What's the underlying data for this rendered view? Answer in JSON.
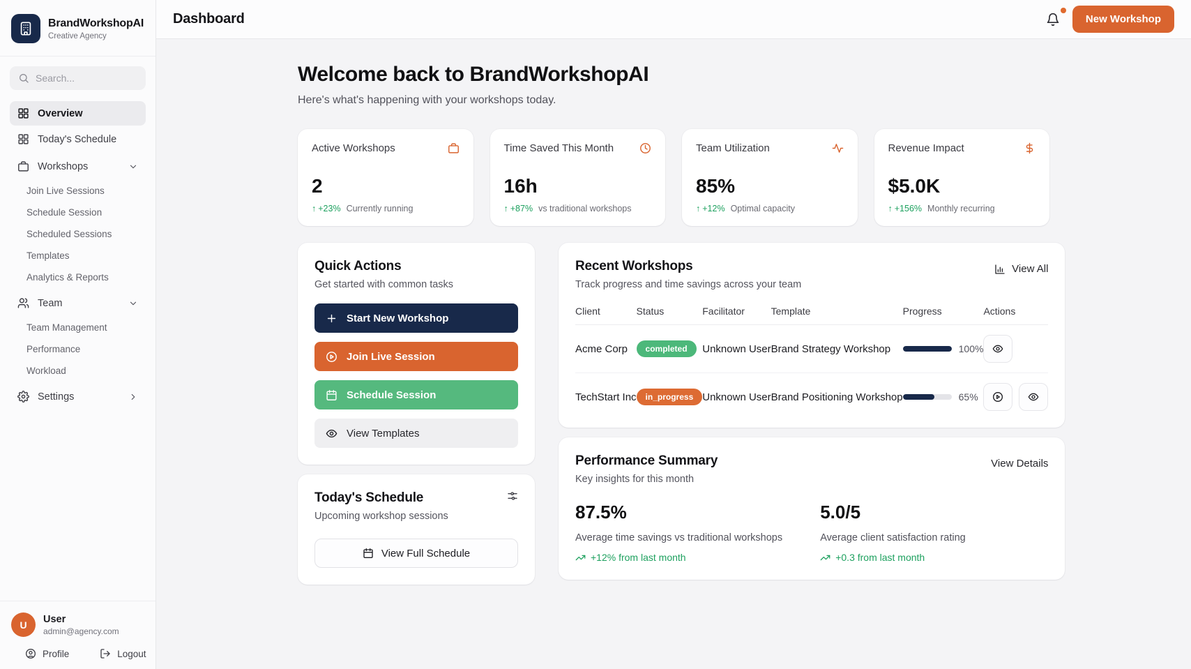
{
  "brand": {
    "name": "BrandWorkshopAI",
    "tagline": "Creative Agency"
  },
  "search": {
    "placeholder": "Search..."
  },
  "sidebar": {
    "items": [
      {
        "label": "Overview",
        "icon": "grid-icon",
        "active": true
      },
      {
        "label": "Today's Schedule",
        "icon": "grid-icon"
      },
      {
        "label": "Workshops",
        "icon": "briefcase-icon",
        "chevron": "down"
      },
      {
        "label": "Join Live Sessions"
      },
      {
        "label": "Schedule Session"
      },
      {
        "label": "Scheduled Sessions"
      },
      {
        "label": "Templates"
      },
      {
        "label": "Analytics & Reports"
      },
      {
        "label": "Team",
        "icon": "users-icon",
        "chevron": "down"
      },
      {
        "label": "Team Management"
      },
      {
        "label": "Performance"
      },
      {
        "label": "Workload"
      },
      {
        "label": "Settings",
        "icon": "gear-icon",
        "chevron": "right"
      }
    ],
    "user": {
      "initial": "U",
      "name": "User",
      "email": "admin@agency.com",
      "profile_label": "Profile",
      "logout_label": "Logout"
    }
  },
  "header": {
    "title": "Dashboard",
    "new_workshop_label": "New Workshop"
  },
  "welcome": {
    "title": "Welcome back to BrandWorkshopAI",
    "subtitle": "Here's what's happening with your workshops today."
  },
  "stats": [
    {
      "label": "Active Workshops",
      "icon": "briefcase-icon",
      "value": "2",
      "trend": "+23%",
      "note": "Currently running"
    },
    {
      "label": "Time Saved This Month",
      "icon": "clock-icon",
      "value": "16h",
      "trend": "+87%",
      "note": "vs traditional workshops"
    },
    {
      "label": "Team Utilization",
      "icon": "activity-icon",
      "value": "85%",
      "trend": "+12%",
      "note": "Optimal capacity"
    },
    {
      "label": "Revenue Impact",
      "icon": "dollar-icon",
      "value": "$5.0K",
      "trend": "+156%",
      "note": "Monthly recurring"
    }
  ],
  "quick_actions": {
    "title": "Quick Actions",
    "subtitle": "Get started with common tasks",
    "buttons": [
      {
        "label": "Start New Workshop",
        "icon": "plus-icon"
      },
      {
        "label": "Join Live Session",
        "icon": "play-circle-icon"
      },
      {
        "label": "Schedule Session",
        "icon": "calendar-icon"
      },
      {
        "label": "View Templates",
        "icon": "eye-icon"
      }
    ]
  },
  "recent_workshops": {
    "title": "Recent Workshops",
    "subtitle": "Track progress and time savings across your team",
    "view_all_label": "View All",
    "columns": [
      "Client",
      "Status",
      "Facilitator",
      "Template",
      "Progress",
      "Actions"
    ],
    "rows": [
      {
        "client": "Acme Corp",
        "status": "completed",
        "facilitator": "Unknown User",
        "template": "Brand Strategy Workshop",
        "progress": 100,
        "progress_label": "100%"
      },
      {
        "client": "TechStart Inc",
        "status": "in_progress",
        "facilitator": "Unknown User",
        "template": "Brand Positioning Workshop",
        "progress": 65,
        "progress_label": "65%"
      }
    ]
  },
  "todays_schedule": {
    "title": "Today's Schedule",
    "subtitle": "Upcoming workshop sessions",
    "button_label": "View Full Schedule"
  },
  "performance_summary": {
    "title": "Performance Summary",
    "subtitle": "Key insights for this month",
    "view_details_label": "View Details",
    "metrics": [
      {
        "value": "87.5%",
        "label": "Average time savings vs traditional workshops",
        "trend": "+12% from last month"
      },
      {
        "value": "5.0/5",
        "label": "Average client satisfaction rating",
        "trend": "+0.3 from last month"
      }
    ]
  },
  "colors": {
    "navy": "#18294a",
    "orange": "#d9642f",
    "green": "#55b97e",
    "green_text": "#1ea15f"
  }
}
